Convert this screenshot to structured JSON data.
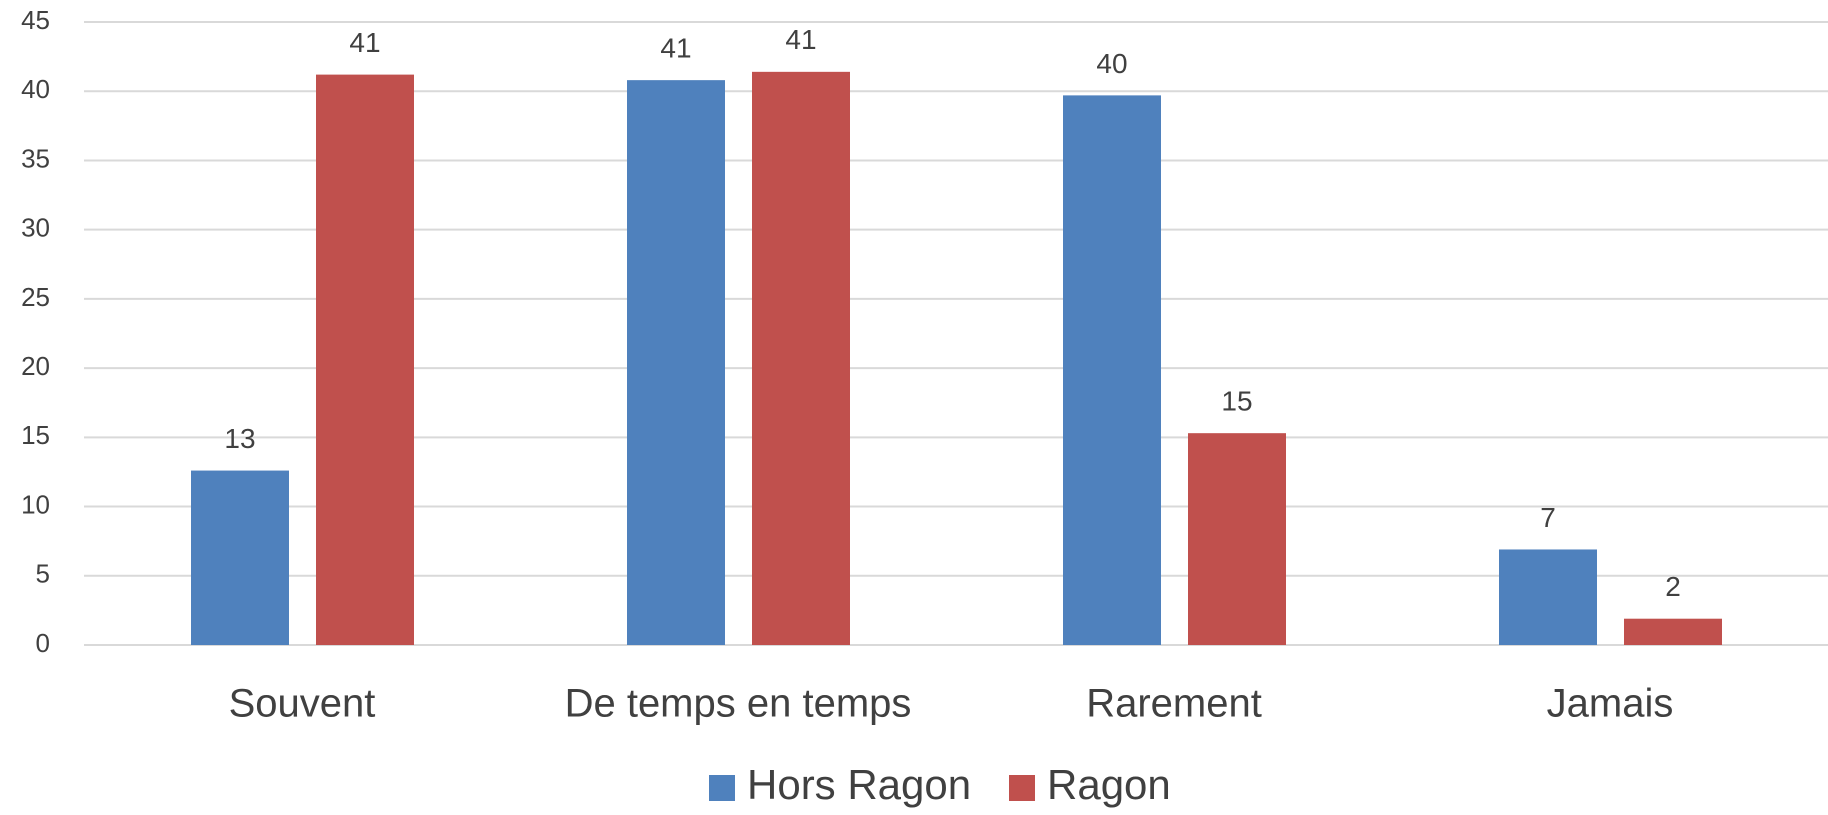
{
  "chart_data": {
    "type": "bar",
    "categories": [
      "Souvent",
      "De temps en temps",
      "Rarement",
      "Jamais"
    ],
    "series": [
      {
        "name": "Hors Ragon",
        "color": "#4f81bd",
        "values": [
          12.6,
          40.8,
          39.7,
          6.9
        ],
        "value_labels": [
          "13",
          "41",
          "40",
          "7"
        ]
      },
      {
        "name": "Ragon",
        "color": "#c0504d",
        "values": [
          41.2,
          41.4,
          15.3,
          1.9
        ],
        "value_labels": [
          "41",
          "41",
          "15",
          "2"
        ]
      }
    ],
    "ylim": [
      0,
      45
    ],
    "yticks": [
      0,
      5,
      10,
      15,
      20,
      25,
      30,
      35,
      40,
      45
    ],
    "grid": true,
    "legend": "bottom"
  }
}
